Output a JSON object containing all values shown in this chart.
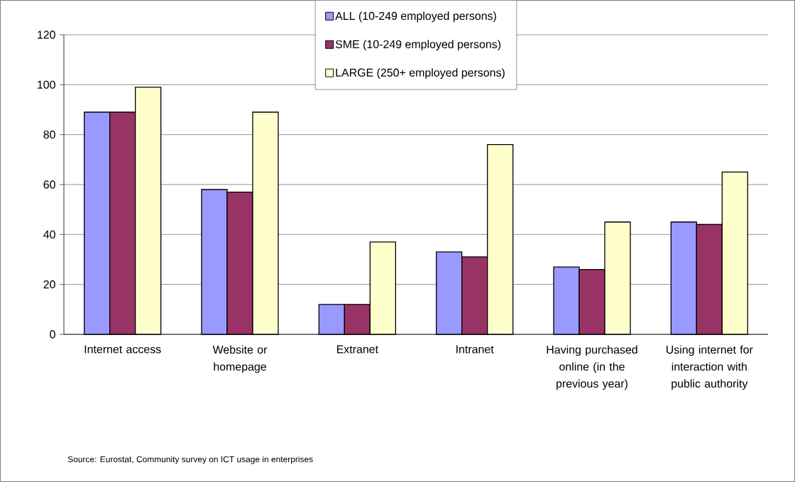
{
  "chart_data": {
    "type": "bar",
    "categories": [
      "Internet access",
      "Website or homepage",
      "Extranet",
      "Intranet",
      "Having purchased online (in the previous year)",
      "Using internet for interaction with public authority"
    ],
    "series": [
      {
        "name": "ALL (10-249 employed persons)",
        "color": "#9999ff",
        "values": [
          89,
          58,
          12,
          33,
          27,
          45
        ]
      },
      {
        "name": "SME (10-249 employed persons)",
        "color": "#993366",
        "values": [
          89,
          57,
          12,
          31,
          26,
          44
        ]
      },
      {
        "name": "LARGE (250+ employed persons)",
        "color": "#ffffcc",
        "values": [
          99,
          89,
          37,
          76,
          45,
          65
        ]
      }
    ],
    "ylim": [
      0,
      120
    ],
    "yticks": [
      0,
      20,
      40,
      60,
      80,
      100,
      120
    ],
    "grid": "y",
    "legend": "top",
    "annotations": [
      "Source: Eurostat, Community survey on ICT usage in enterprises"
    ]
  }
}
